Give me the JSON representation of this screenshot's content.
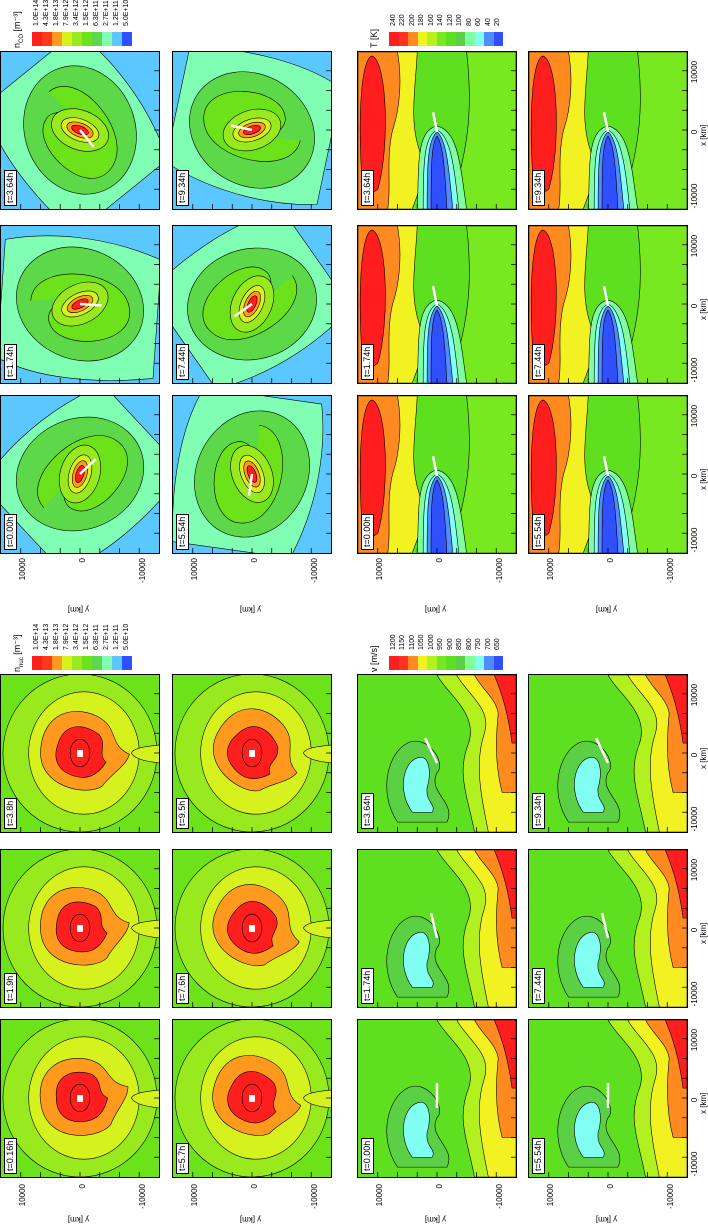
{
  "chart_data": {
    "type": "heatmap",
    "axes": {
      "x_ticks": [
        "-10000",
        "0",
        "10000"
      ],
      "y_ticks": [
        "10000",
        "0",
        "-10000"
      ],
      "xlabel": "x [km]",
      "ylabel": "y [km]",
      "xlim": [
        -15000,
        15000
      ],
      "ylim": [
        -15000,
        15000
      ]
    },
    "groups": [
      {
        "rows": [
          {
            "variable": "nuc",
            "times": [
              "t=0.16h",
              "t=1.9h",
              "t=3.8h"
            ]
          },
          {
            "variable": "nuc",
            "times": [
              "t=5.7h",
              "t=7.6h",
              "t=9.5h"
            ]
          },
          {
            "variable": "v",
            "times": [
              "t=0.00h",
              "t=1.74h",
              "t=3.64h"
            ]
          },
          {
            "variable": "v",
            "times": [
              "t=5.54h",
              "t=7.44h",
              "t=9.34h"
            ]
          }
        ]
      },
      {
        "rows": [
          {
            "variable": "co",
            "times": [
              "t=0.00h",
              "t=1.74h",
              "t=3.64h"
            ]
          },
          {
            "variable": "co",
            "times": [
              "t=5.54h",
              "t=7.44h",
              "t=9.34h"
            ]
          },
          {
            "variable": "T",
            "times": [
              "t=0.00h",
              "t=1.74h",
              "t=3.64h"
            ]
          },
          {
            "variable": "T",
            "times": [
              "t=5.54h",
              "t=7.44h",
              "t=9.34h"
            ]
          }
        ]
      }
    ],
    "colorbars": {
      "nuc": {
        "symbol": "n",
        "sub": "nuc",
        "unit": " [m⁻³]",
        "levels": [
          "1.0E+14",
          "4.3E+13",
          "1.8E+13",
          "7.9E+12",
          "3.4E+12",
          "1.5E+12",
          "6.3E+11",
          "2.7E+11",
          "1.2E+11",
          "5.0E+10"
        ],
        "colors": [
          "#ff1e1e",
          "#ff3a1a",
          "#ff9a1f",
          "#d6f21e",
          "#98ea1e",
          "#6ce21a",
          "#5cd848",
          "#80ffb4",
          "#5ac8ff",
          "#3050ff"
        ]
      },
      "co": {
        "symbol": "n",
        "sub": "CO",
        "unit": " [m⁻³]",
        "levels": [
          "1.0E+14",
          "4.3E+13",
          "1.8E+13",
          "7.9E+12",
          "3.4E+12",
          "1.5E+12",
          "6.3E+11",
          "2.7E+11",
          "1.2E+11",
          "5.0E+10"
        ],
        "colors": [
          "#ff1e1e",
          "#ff3a1a",
          "#ff9a1f",
          "#d6f21e",
          "#98ea1e",
          "#6ce21a",
          "#5cd848",
          "#80ffb4",
          "#5ac8ff",
          "#3050ff"
        ]
      },
      "v": {
        "symbol": "v",
        "sub": "",
        "unit": " [m/s]",
        "levels": [
          "1200",
          "1150",
          "1100",
          "1050",
          "1000",
          "950",
          "900",
          "850",
          "800",
          "750",
          "700",
          "650"
        ],
        "colors": [
          "#ff1e1e",
          "#ff3420",
          "#ff8a20",
          "#f2f222",
          "#b2f020",
          "#74e820",
          "#5ee020",
          "#5cd044",
          "#80ff96",
          "#80fff2",
          "#4f8cff",
          "#3050ff"
        ]
      },
      "T": {
        "symbol": "T",
        "sub": "",
        "unit": " [K]",
        "levels": [
          "240",
          "220",
          "200",
          "180",
          "160",
          "140",
          "120",
          "100",
          "80",
          "60",
          "40",
          "20"
        ],
        "colors": [
          "#ff1e1e",
          "#ff3420",
          "#ff8a20",
          "#f2f222",
          "#b8f020",
          "#78e820",
          "#5ee020",
          "#5cd044",
          "#80ffa2",
          "#80fff2",
          "#4f8cff",
          "#3050ff"
        ]
      }
    }
  }
}
